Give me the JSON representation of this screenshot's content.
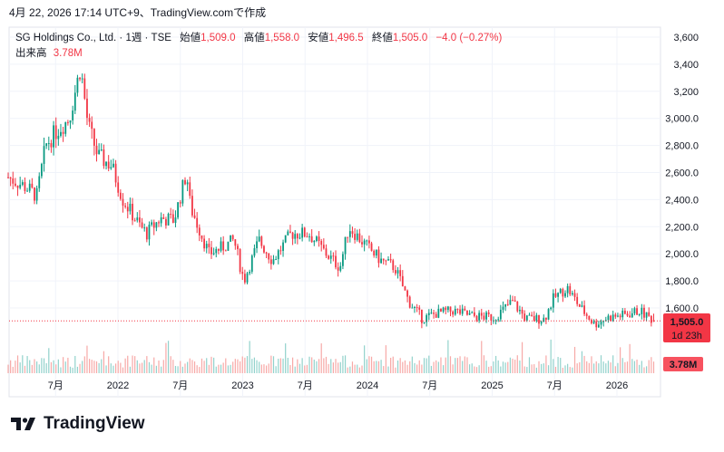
{
  "header": {
    "timestamp": "4月 22, 2026 17:14 UTC+9、TradingView.comで作成"
  },
  "legend": {
    "symbol": "SG Holdings Co., Ltd. · 1週 · TSE",
    "open_label": "始値",
    "open": "1,509.0",
    "high_label": "高値",
    "high": "1,558.0",
    "low_label": "安値",
    "low": "1,496.5",
    "close_label": "終値",
    "close": "1,505.0",
    "change": "−4.0 (−0.27%)",
    "volume_label": "出来高",
    "volume": "3.78M"
  },
  "price_badge": {
    "price": "1,505.0",
    "countdown": "1d 23h"
  },
  "volume_badge": "3.78M",
  "logo": {
    "text": "TradingView"
  },
  "colors": {
    "up": "#089981",
    "down": "#f23645",
    "up_vol": "#92d2cc",
    "down_vol": "#f7a9a7",
    "grid": "#f0f3fa"
  },
  "chart_data": {
    "type": "candlestick",
    "interval": "1W",
    "y_ticks": [
      "3,600",
      "3,400",
      "3,200",
      "3,000.0",
      "2,800.0",
      "2,600.0",
      "2,400.0",
      "2,200.0",
      "2,000.0",
      "1,800.0",
      "1,600.0"
    ],
    "y_tick_values": [
      3600,
      3400,
      3200,
      3000,
      2800,
      2600,
      2400,
      2200,
      2000,
      1800,
      1600
    ],
    "ylim": [
      1320,
      3600
    ],
    "x_ticks": [
      {
        "t": 2021.5,
        "label": "7月"
      },
      {
        "t": 2022.0,
        "label": "2022"
      },
      {
        "t": 2022.5,
        "label": "7月"
      },
      {
        "t": 2023.0,
        "label": "2023"
      },
      {
        "t": 2023.5,
        "label": "7月"
      },
      {
        "t": 2024.0,
        "label": "2024"
      },
      {
        "t": 2024.5,
        "label": "7月"
      },
      {
        "t": 2025.0,
        "label": "2025"
      },
      {
        "t": 2025.5,
        "label": "7月"
      },
      {
        "t": 2026.0,
        "label": "2026"
      }
    ],
    "xlim": [
      2021.12,
      2026.35
    ],
    "last_price": 1505.0,
    "close_anchors": [
      [
        2021.13,
        2560
      ],
      [
        2021.25,
        2500
      ],
      [
        2021.35,
        2430
      ],
      [
        2021.42,
        2800
      ],
      [
        2021.5,
        2900
      ],
      [
        2021.61,
        3000
      ],
      [
        2021.7,
        3380
      ],
      [
        2021.76,
        2950
      ],
      [
        2021.84,
        2720
      ],
      [
        2021.95,
        2650
      ],
      [
        2022.04,
        2400
      ],
      [
        2022.18,
        2200
      ],
      [
        2022.23,
        2150
      ],
      [
        2022.34,
        2260
      ],
      [
        2022.45,
        2250
      ],
      [
        2022.55,
        2600
      ],
      [
        2022.58,
        2350
      ],
      [
        2022.73,
        2000
      ],
      [
        2022.84,
        2050
      ],
      [
        2022.93,
        2100
      ],
      [
        2023.01,
        1800
      ],
      [
        2023.13,
        2100
      ],
      [
        2023.24,
        1950
      ],
      [
        2023.39,
        2150
      ],
      [
        2023.53,
        2150
      ],
      [
        2023.67,
        2000
      ],
      [
        2023.78,
        1900
      ],
      [
        2023.85,
        2200
      ],
      [
        2024.0,
        2050
      ],
      [
        2024.11,
        1950
      ],
      [
        2024.22,
        1900
      ],
      [
        2024.33,
        1650
      ],
      [
        2024.44,
        1520
      ],
      [
        2024.55,
        1560
      ],
      [
        2024.69,
        1580
      ],
      [
        2024.84,
        1540
      ],
      [
        2025.02,
        1530
      ],
      [
        2025.16,
        1650
      ],
      [
        2025.27,
        1520
      ],
      [
        2025.42,
        1520
      ],
      [
        2025.49,
        1670
      ],
      [
        2025.6,
        1750
      ],
      [
        2025.71,
        1600
      ],
      [
        2025.82,
        1480
      ],
      [
        2025.93,
        1530
      ],
      [
        2026.07,
        1550
      ],
      [
        2026.18,
        1580
      ],
      [
        2026.3,
        1505
      ]
    ],
    "volume_axis_label": "3.78M"
  }
}
